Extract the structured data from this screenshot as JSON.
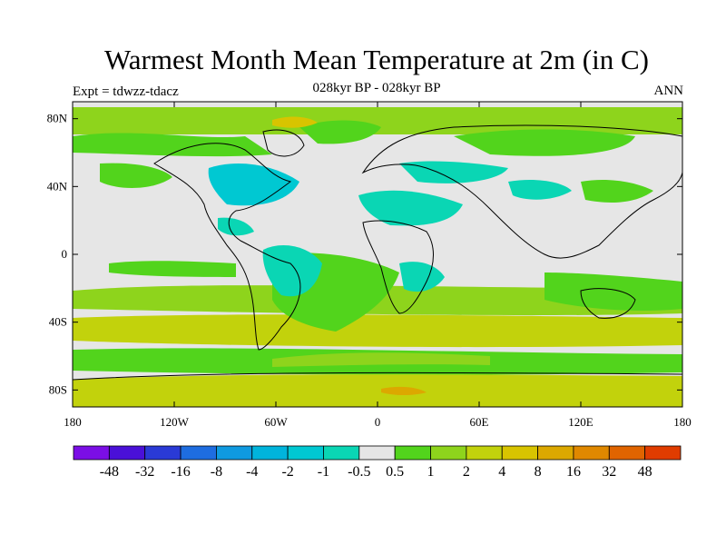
{
  "title": "Warmest Month Mean Temperature at 2m (in C)",
  "subtitle": "028kyr BP - 028kyr BP",
  "left_label": "Expt = tdwzz-tdacz",
  "right_label": "ANN",
  "map": {
    "projection": "cylindrical-equidistant",
    "lon_range": [
      -180,
      180
    ],
    "lat_range": [
      -90,
      90
    ],
    "background_color": "#e6e6e6",
    "lat_ticks": [
      {
        "lat": 80,
        "label": "80N"
      },
      {
        "lat": 40,
        "label": "40N"
      },
      {
        "lat": 0,
        "label": "0"
      },
      {
        "lat": -40,
        "label": "40S"
      },
      {
        "lat": -80,
        "label": "80S"
      }
    ],
    "lon_ticks": [
      {
        "lon": -180,
        "label": "180"
      },
      {
        "lon": -120,
        "label": "120W"
      },
      {
        "lon": -60,
        "label": "60W"
      },
      {
        "lon": 0,
        "label": "0"
      },
      {
        "lon": 60,
        "label": "60E"
      },
      {
        "lon": 120,
        "label": "120E"
      },
      {
        "lon": 180,
        "label": "180"
      }
    ]
  },
  "colorbar": {
    "colors": [
      "#7b0ee6",
      "#4a10d8",
      "#2a3ad6",
      "#1e6de0",
      "#0f9ae0",
      "#00b4dc",
      "#00c8d2",
      "#0ad6b4",
      "#e6e6e6",
      "#52d41c",
      "#8ed41c",
      "#c2d20c",
      "#d8c400",
      "#dca800",
      "#e08800",
      "#e06400",
      "#e03c00"
    ],
    "labels": [
      "-48",
      "-32",
      "-16",
      "-8",
      "-4",
      "-2",
      "-1",
      "-0.5",
      "0.5",
      "1",
      "2",
      "4",
      "8",
      "16",
      "32",
      "48"
    ]
  }
}
